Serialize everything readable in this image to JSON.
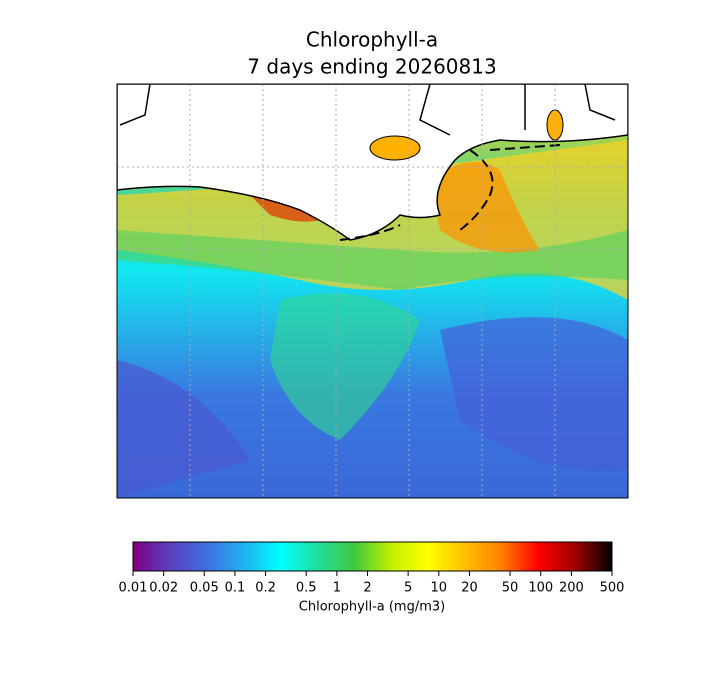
{
  "chart_data": {
    "type": "colorbar-map",
    "title": "Chlorophyll-a",
    "subtitle": "7 days ending 20260813",
    "colorbar_label": "Chlorophyll-a (mg/m3)",
    "xlim": [
      0.01,
      500
    ],
    "xticks": [
      0.01,
      0.02,
      0.05,
      0.1,
      0.2,
      0.5,
      1,
      2,
      5,
      10,
      20,
      50,
      100,
      200,
      500
    ],
    "log_scale": true,
    "colormap": [
      "#7f007f",
      "#5a3fc0",
      "#3f6fe0",
      "#20b0f0",
      "#00ffff",
      "#20e0a0",
      "#40c840",
      "#c0f000",
      "#ffff00",
      "#ffc000",
      "#ff8000",
      "#ff0000",
      "#a00000",
      "#000000"
    ]
  }
}
